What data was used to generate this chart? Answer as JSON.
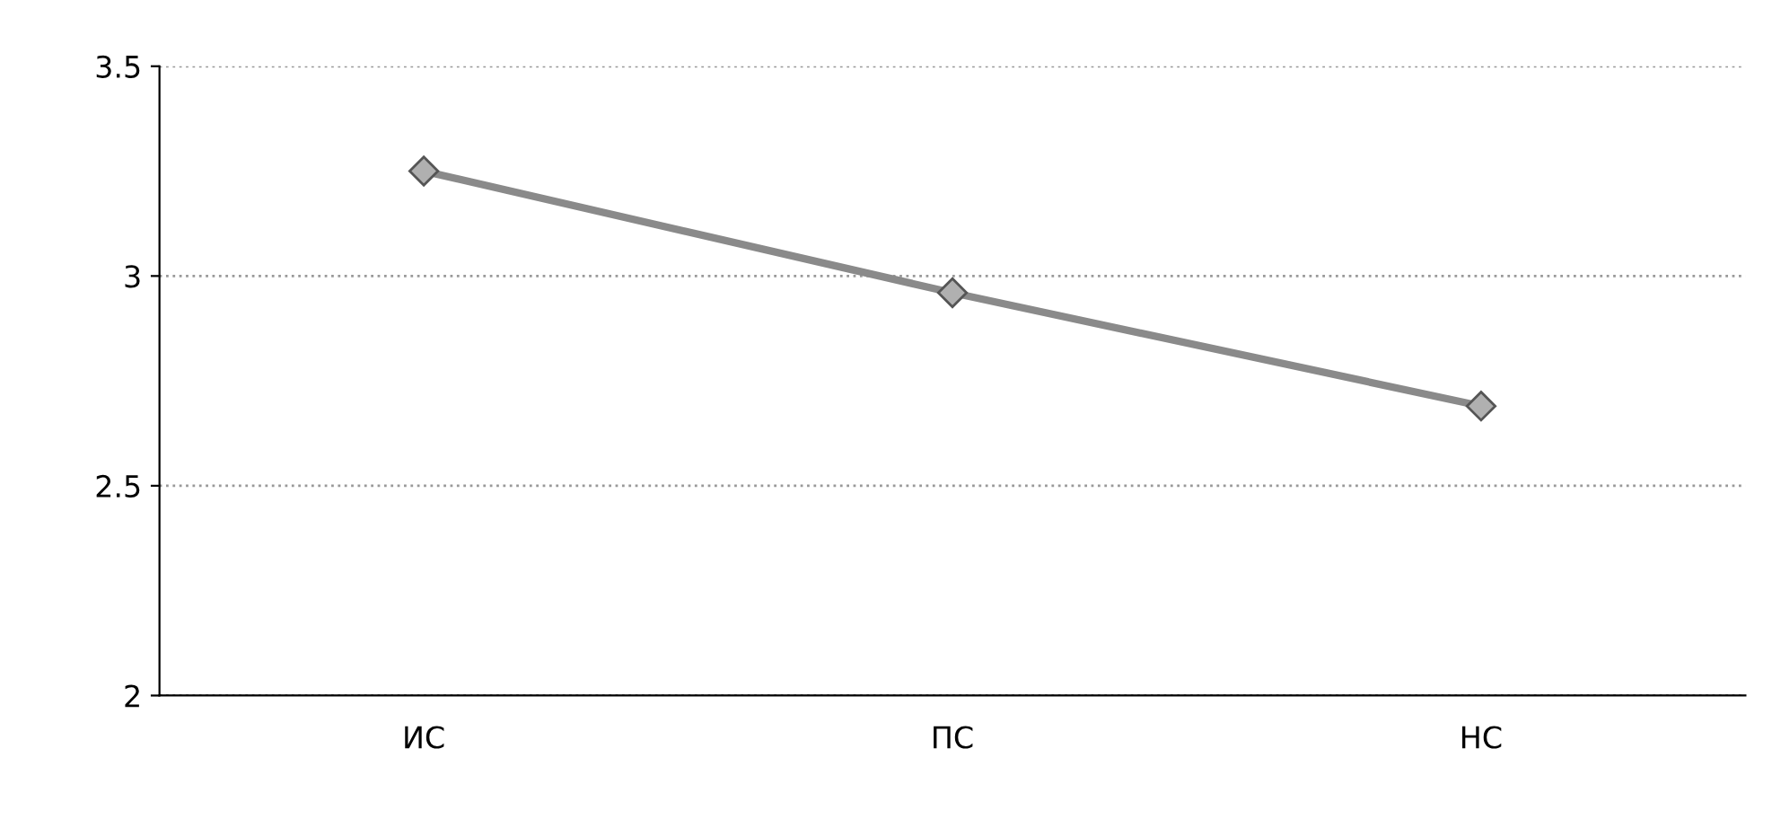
{
  "chart_data": {
    "type": "line",
    "categories": [
      "ИС",
      "ПС",
      "НС"
    ],
    "series": [
      {
        "color": "#8a8a8a",
        "values": [
          3.25,
          2.96,
          2.69
        ]
      }
    ],
    "ylim": [
      2,
      3.5
    ],
    "yticks": [
      2,
      2.5,
      3,
      3.5
    ],
    "grid": "y",
    "marker": "diamond",
    "line_style": "solid",
    "legend": false
  }
}
